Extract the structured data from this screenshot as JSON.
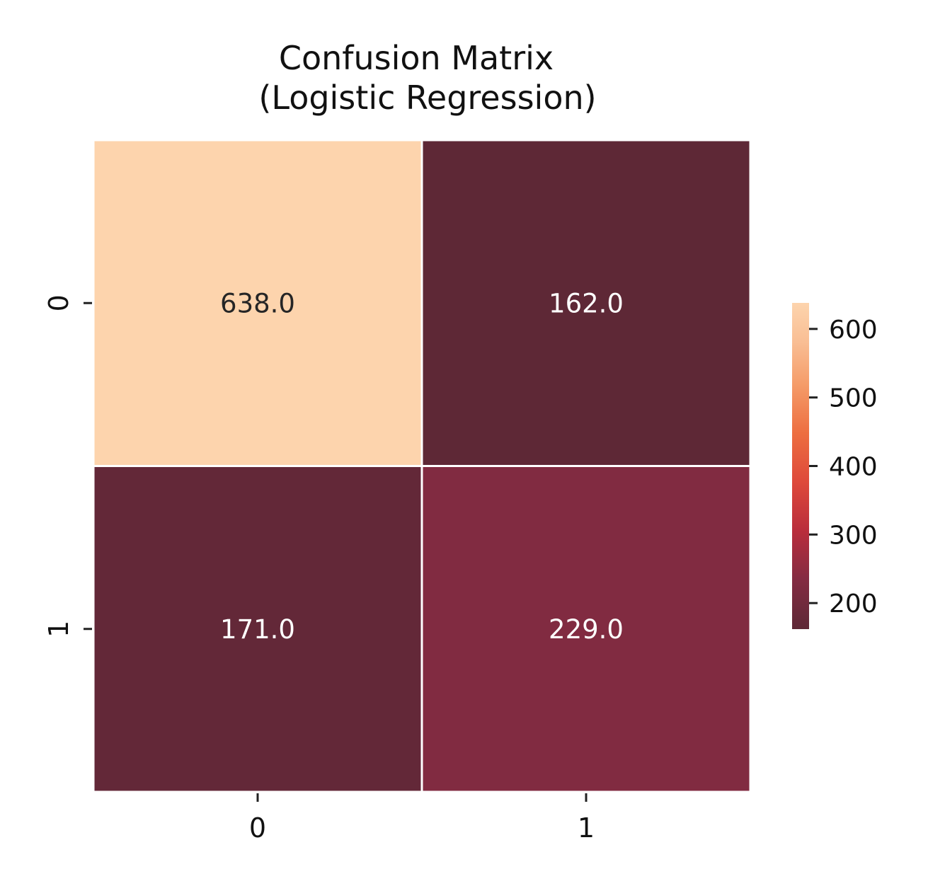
{
  "chart_data": {
    "type": "heatmap",
    "title_line1": "Confusion Matrix",
    "title_line2": "(Logistic Regression)",
    "row_labels": [
      "0",
      "1"
    ],
    "col_labels": [
      "0",
      "1"
    ],
    "values": [
      [
        638.0,
        162.0
      ],
      [
        171.0,
        229.0
      ]
    ],
    "cell_text": [
      [
        "638.0",
        "162.0"
      ],
      [
        "171.0",
        "229.0"
      ]
    ],
    "colorbar": {
      "vmin": 162,
      "vmax": 638,
      "ticks": [
        200,
        300,
        400,
        500,
        600
      ],
      "tick_labels": [
        "200",
        "300",
        "400",
        "500",
        "600"
      ]
    },
    "colormap": "rocket",
    "xlabel": "",
    "ylabel": ""
  }
}
